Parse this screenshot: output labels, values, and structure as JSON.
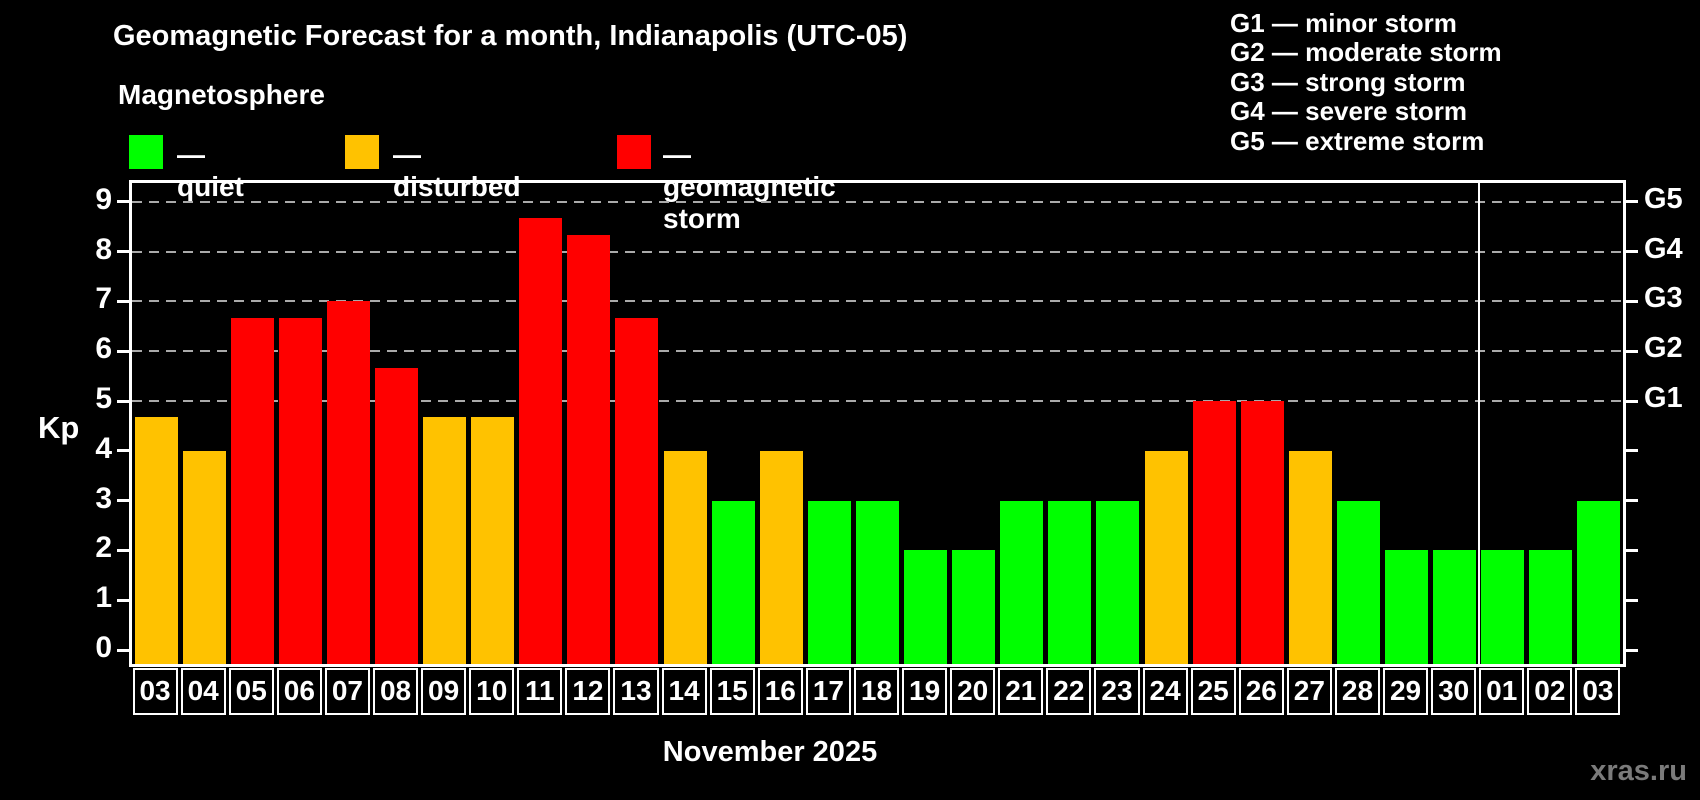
{
  "title": "Geomagnetic Forecast for a month, Indianapolis (UTC-05)",
  "subtitle": "Magnetosphere",
  "legend": {
    "items": [
      {
        "key": "quiet",
        "label": "— quiet",
        "color": "#00ff00"
      },
      {
        "key": "disturbed",
        "label": "— disturbed",
        "color": "#ffc200"
      },
      {
        "key": "storm",
        "label": "— geomagnetic storm",
        "color": "#ff0000"
      }
    ]
  },
  "g_legend": [
    "G1 — minor storm",
    "G2 — moderate storm",
    "G3 — strong storm",
    "G4 — severe storm",
    "G5 — extreme storm"
  ],
  "axes": {
    "kp_label": "Kp",
    "y_ticks": [
      "0",
      "1",
      "2",
      "3",
      "4",
      "5",
      "6",
      "7",
      "8",
      "9"
    ],
    "g_ticks": [
      {
        "kp": 5,
        "label": "G1"
      },
      {
        "kp": 6,
        "label": "G2"
      },
      {
        "kp": 7,
        "label": "G3"
      },
      {
        "kp": 8,
        "label": "G4"
      },
      {
        "kp": 9,
        "label": "G5"
      }
    ],
    "x_title": "November 2025"
  },
  "watermark": "xras.ru",
  "chart_data": {
    "type": "bar",
    "title": "Geomagnetic Forecast for a month, Indianapolis (UTC-05)",
    "xlabel": "November 2025",
    "ylabel": "Kp",
    "ylim": [
      0,
      9
    ],
    "grid_levels": [
      5,
      6,
      7,
      8,
      9
    ],
    "legend_position": "top-left",
    "categories": [
      "03",
      "04",
      "05",
      "06",
      "07",
      "08",
      "09",
      "10",
      "11",
      "12",
      "13",
      "14",
      "15",
      "16",
      "17",
      "18",
      "19",
      "20",
      "21",
      "22",
      "23",
      "24",
      "25",
      "26",
      "27",
      "28",
      "29",
      "30",
      "01",
      "02",
      "03"
    ],
    "values": [
      4.67,
      4,
      6.67,
      6.67,
      7,
      5.67,
      4.67,
      4.67,
      8.67,
      8.33,
      6.67,
      4,
      3,
      4,
      3,
      3,
      2,
      2,
      3,
      3,
      3,
      4,
      5,
      5,
      4,
      3,
      2,
      2,
      2,
      2,
      3
    ],
    "statuses": [
      "disturbed",
      "disturbed",
      "storm",
      "storm",
      "storm",
      "storm",
      "disturbed",
      "disturbed",
      "storm",
      "storm",
      "storm",
      "disturbed",
      "quiet",
      "disturbed",
      "quiet",
      "quiet",
      "quiet",
      "quiet",
      "quiet",
      "quiet",
      "quiet",
      "disturbed",
      "storm",
      "storm",
      "disturbed",
      "quiet",
      "quiet",
      "quiet",
      "quiet",
      "quiet",
      "quiet"
    ],
    "status_colors": {
      "quiet": "#00ff00",
      "disturbed": "#ffc200",
      "storm": "#ff0000"
    },
    "month_separator_after_index": 27
  }
}
